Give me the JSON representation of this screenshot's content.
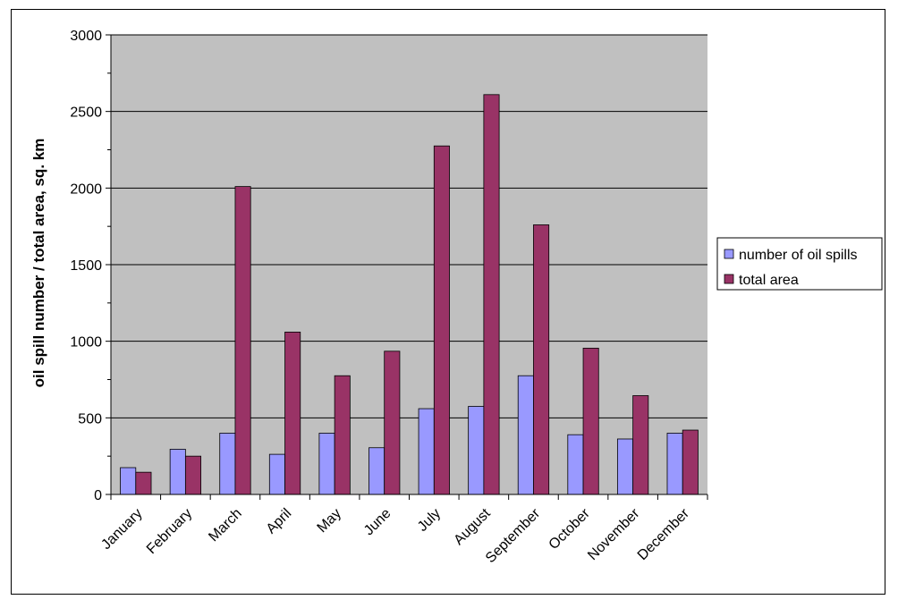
{
  "chart_data": {
    "type": "bar",
    "title": "",
    "xlabel": "",
    "ylabel": "oil spill number / total area,  sq. km",
    "ylim": [
      0,
      3000
    ],
    "yticks": [
      0,
      500,
      1000,
      1500,
      2000,
      2500,
      3000
    ],
    "grid": true,
    "legend_position": "right",
    "background_color": "#c0c0c0",
    "categories": [
      "January",
      "February",
      "March",
      "April",
      "May",
      "June",
      "July",
      "August",
      "September",
      "October",
      "November",
      "December"
    ],
    "series": [
      {
        "name": "number of oil spills",
        "color": "#9999ff",
        "values": [
          175,
          295,
          400,
          262,
          400,
          305,
          560,
          575,
          775,
          390,
          362,
          400
        ]
      },
      {
        "name": "total area",
        "color": "#993366",
        "values": [
          145,
          250,
          2010,
          1060,
          775,
          935,
          2275,
          2610,
          1760,
          955,
          645,
          420
        ]
      }
    ]
  }
}
